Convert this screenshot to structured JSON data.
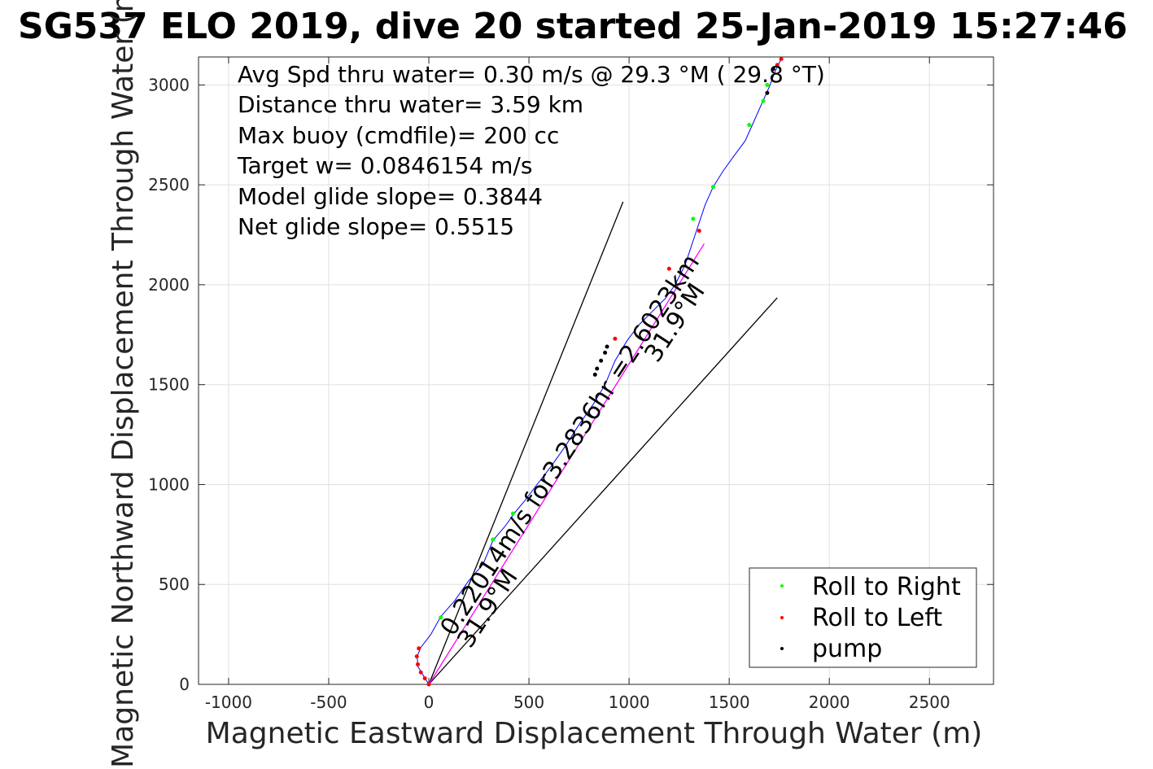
{
  "chart_data": {
    "type": "scatter",
    "title": "SG537 ELO 2019, dive 20 started 25-Jan-2019 15:27:46",
    "xlabel": "Magnetic Eastward Displacement Through Water (m)",
    "ylabel": "Magnetic Northward Displacement Through Water (m)",
    "xlim": [
      -1150,
      2820
    ],
    "ylim": [
      0,
      3140
    ],
    "xticks": [
      -1000,
      -500,
      0,
      500,
      1000,
      1500,
      2000,
      2500
    ],
    "xtick_labels": [
      "-1000",
      "-500",
      "0",
      "500",
      "1000",
      "1500",
      "2000",
      "2500"
    ],
    "yticks": [
      0,
      500,
      1000,
      1500,
      2000,
      2500,
      3000
    ],
    "ytick_labels": [
      "0",
      "500",
      "1000",
      "1500",
      "2000",
      "2500",
      "3000"
    ],
    "grid": true,
    "legend_position": "bottom-right",
    "annotations": [
      "Avg Spd thru water=  0.30 m/s @  29.3 °M ( 29.8 °T)",
      "Distance thru water=  3.59 km",
      "Max buoy (cmdfile)= 200 cc",
      "Target w= 0.0846154 m/s",
      "Model glide slope= 0.3844",
      "Net glide slope= 0.5515"
    ],
    "rotated_labels": {
      "drift": "0.22014m/s for3.2836hr =2.6023km",
      "drift_heading": "31.9°M",
      "envelope_heading": "31.9°M"
    },
    "track": {
      "color": "#0000ff",
      "points": [
        [
          0,
          0
        ],
        [
          -25,
          40
        ],
        [
          -55,
          90
        ],
        [
          -58,
          140
        ],
        [
          -40,
          185
        ],
        [
          10,
          250
        ],
        [
          60,
          340
        ],
        [
          130,
          420
        ],
        [
          200,
          520
        ],
        [
          270,
          600
        ],
        [
          320,
          720
        ],
        [
          380,
          790
        ],
        [
          430,
          860
        ],
        [
          480,
          920
        ],
        [
          540,
          1000
        ],
        [
          610,
          1090
        ],
        [
          680,
          1190
        ],
        [
          750,
          1300
        ],
        [
          820,
          1400
        ],
        [
          880,
          1500
        ],
        [
          930,
          1620
        ],
        [
          990,
          1720
        ],
        [
          1050,
          1800
        ],
        [
          1120,
          1870
        ],
        [
          1180,
          1930
        ],
        [
          1230,
          2000
        ],
        [
          1280,
          2100
        ],
        [
          1330,
          2250
        ],
        [
          1380,
          2400
        ],
        [
          1420,
          2490
        ],
        [
          1470,
          2570
        ],
        [
          1520,
          2640
        ],
        [
          1580,
          2720
        ],
        [
          1620,
          2810
        ],
        [
          1660,
          2900
        ],
        [
          1700,
          2990
        ],
        [
          1730,
          3070
        ],
        [
          1760,
          3130
        ]
      ]
    },
    "lines": [
      {
        "name": "upper-envelope-line",
        "color": "#000000",
        "points": [
          [
            0,
            0
          ],
          [
            970,
            2415
          ]
        ]
      },
      {
        "name": "lower-envelope-line",
        "color": "#000000",
        "points": [
          [
            0,
            0
          ],
          [
            1740,
            1935
          ]
        ]
      },
      {
        "name": "drift-line",
        "color": "#ff00ff",
        "points": [
          [
            0,
            0
          ],
          [
            1375,
            2205
          ]
        ]
      }
    ],
    "series": [
      {
        "name": "Roll to Right",
        "color": "#00ff00",
        "points": [
          [
            60,
            335
          ],
          [
            320,
            725
          ],
          [
            420,
            855
          ],
          [
            1320,
            2330
          ],
          [
            1420,
            2490
          ],
          [
            1600,
            2800
          ],
          [
            1670,
            2920
          ],
          [
            1690,
            3000
          ]
        ]
      },
      {
        "name": "Roll to Left",
        "color": "#ff0000",
        "points": [
          [
            0,
            0
          ],
          [
            -20,
            30
          ],
          [
            -40,
            60
          ],
          [
            -55,
            100
          ],
          [
            -60,
            140
          ],
          [
            -50,
            180
          ],
          [
            930,
            1730
          ],
          [
            1200,
            2080
          ],
          [
            1350,
            2270
          ],
          [
            1740,
            3100
          ],
          [
            1760,
            3130
          ]
        ]
      },
      {
        "name": "pump",
        "color": "#000000",
        "points": [
          [
            830,
            1550
          ],
          [
            840,
            1580
          ],
          [
            860,
            1620
          ],
          [
            880,
            1660
          ],
          [
            890,
            1690
          ],
          [
            1690,
            2960
          ],
          [
            1720,
            3080
          ]
        ]
      }
    ]
  }
}
